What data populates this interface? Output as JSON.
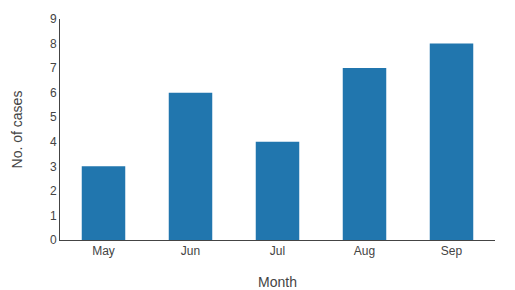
{
  "chart_data": {
    "type": "bar",
    "categories": [
      "May",
      "Jun",
      "Jul",
      "Aug",
      "Sep"
    ],
    "values": [
      3,
      6,
      4,
      7,
      8
    ],
    "color": "#2176ae",
    "xlabel": "Month",
    "ylabel": "No. of cases",
    "ylim": [
      0,
      9
    ],
    "yticks": [
      0,
      1,
      2,
      3,
      4,
      5,
      6,
      7,
      8,
      9
    ],
    "grid": false
  }
}
